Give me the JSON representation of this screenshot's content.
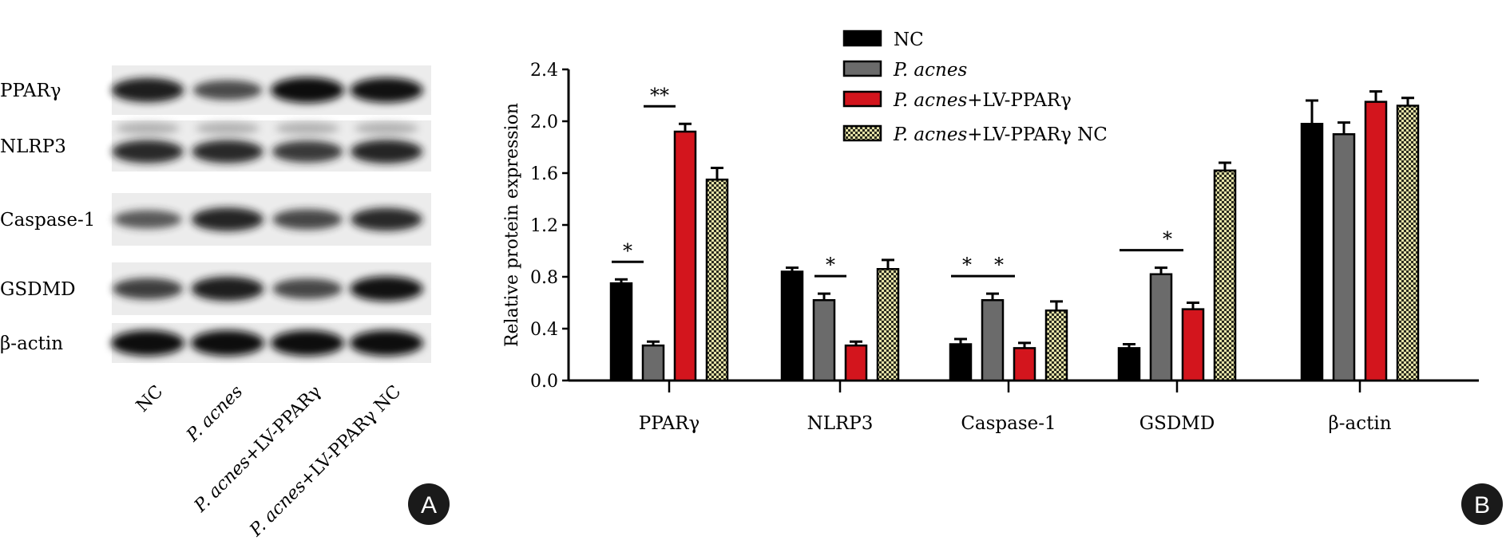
{
  "panel_a": {
    "badge": "A",
    "row_labels": [
      "PPARγ",
      "NLRP3",
      "Caspase-1",
      "GSDMD",
      "β-actin"
    ],
    "lanes": [
      {
        "italic": "",
        "rest": "NC"
      },
      {
        "italic": "P. acnes",
        "rest": ""
      },
      {
        "italic": "P. acnes",
        "rest": "+LV-PPARγ"
      },
      {
        "italic": "P. acnes",
        "rest": "+LV-PPARγ NC"
      }
    ],
    "band_intensity": [
      [
        0.9,
        0.55,
        1.0,
        0.95
      ],
      [
        0.8,
        0.8,
        0.7,
        0.85
      ],
      [
        0.45,
        0.85,
        0.6,
        0.8
      ],
      [
        0.65,
        0.9,
        0.6,
        0.95
      ],
      [
        1.0,
        1.0,
        1.0,
        1.0
      ]
    ]
  },
  "panel_b": {
    "badge": "B"
  },
  "chart_data": {
    "type": "bar",
    "title": "",
    "xlabel": "",
    "ylabel": "Relative protein expression",
    "ylim": [
      0,
      2.4
    ],
    "yticks": [
      "0.0",
      "0.4",
      "0.8",
      "1.2",
      "1.6",
      "2.0",
      "2.4"
    ],
    "categories": [
      "PPARγ",
      "NLRP3",
      "Caspase-1",
      "GSDMD",
      "β-actin"
    ],
    "series": [
      {
        "name": "NC",
        "italic": "",
        "rest": "NC",
        "color": "#000000",
        "values": [
          0.75,
          0.84,
          0.28,
          0.25,
          1.98
        ],
        "errors": [
          0.03,
          0.03,
          0.04,
          0.03,
          0.18
        ]
      },
      {
        "name": "P. acnes",
        "italic": "P. acnes",
        "rest": "",
        "color": "#6b6b6b",
        "values": [
          0.27,
          0.62,
          0.62,
          0.82,
          1.9
        ],
        "errors": [
          0.03,
          0.05,
          0.05,
          0.05,
          0.09
        ]
      },
      {
        "name": "P. acnes+LV-PPARγ",
        "italic": "P. acnes",
        "rest": "+LV-PPARγ",
        "color": "#d3151d",
        "values": [
          1.92,
          0.27,
          0.25,
          0.55,
          2.15
        ],
        "errors": [
          0.06,
          0.03,
          0.04,
          0.05,
          0.08
        ]
      },
      {
        "name": "P. acnes+LV-PPARγ NC",
        "italic": "P. acnes",
        "rest": "+LV-PPARγ NC",
        "color": "#e2dfa0",
        "values": [
          1.55,
          0.86,
          0.54,
          1.62,
          2.12
        ],
        "errors": [
          0.09,
          0.07,
          0.07,
          0.06,
          0.06
        ]
      }
    ],
    "significance": [
      {
        "category": "PPARγ",
        "from": "NC",
        "to": "P. acnes",
        "label": "*"
      },
      {
        "category": "PPARγ",
        "from": "P. acnes",
        "to": "P. acnes+LV-PPARγ",
        "label": "**"
      },
      {
        "category": "NLRP3",
        "from": "P. acnes",
        "to": "P. acnes+LV-PPARγ",
        "label": "*"
      },
      {
        "category": "Caspase-1",
        "from": "NC",
        "to": "P. acnes",
        "label": "*"
      },
      {
        "category": "Caspase-1",
        "from": "P. acnes",
        "to": "P. acnes+LV-PPARγ",
        "label": "*"
      },
      {
        "category": "GSDMD",
        "from": "NC",
        "to": "P. acnes",
        "label": ""
      },
      {
        "category": "GSDMD",
        "from": "P. acnes",
        "to": "P. acnes+LV-PPARγ",
        "label": "*"
      }
    ],
    "legend_position": "top"
  }
}
